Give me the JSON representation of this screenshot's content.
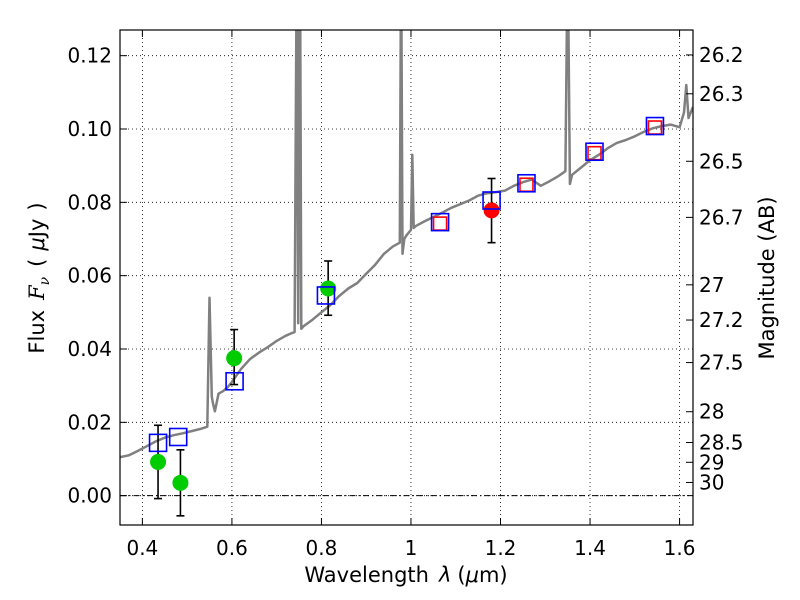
{
  "chart_data": {
    "type": "scatter",
    "xlabel_prefix": "Wavelength",
    "xlabel_symbol": "λ",
    "xlabel_unit_open": "(",
    "xlabel_unit_mu": "μ",
    "xlabel_unit_rest": "m)",
    "ylabel_prefix": "Flux",
    "ylabel_symbol_main": "F",
    "ylabel_symbol_sub": "ν",
    "ylabel_unit_open": "(",
    "ylabel_unit_mu": "μ",
    "ylabel_unit_rest": "Jy",
    "ylabel_unit_close": ")",
    "y2label": "Magnitude (AB)",
    "xlim": [
      0.35,
      1.63
    ],
    "ylim": [
      -0.008,
      0.127
    ],
    "grid": true,
    "xticks": [
      0.4,
      0.6,
      0.8,
      1.0,
      1.2,
      1.4,
      1.6
    ],
    "xtick_labels": [
      "0.4",
      "0.6",
      "0.8",
      "1",
      "1.2",
      "1.4",
      "1.6"
    ],
    "yticks": [
      0.0,
      0.02,
      0.04,
      0.06,
      0.08,
      0.1,
      0.12
    ],
    "ytick_labels": [
      "0.00",
      "0.02",
      "0.04",
      "0.06",
      "0.08",
      "0.10",
      "0.12"
    ],
    "mag_ticks": [
      {
        "label": "26.2",
        "flux": 0.1202
      },
      {
        "label": "26.3",
        "flux": 0.1096
      },
      {
        "label": "26.5",
        "flux": 0.0912
      },
      {
        "label": "26.7",
        "flux": 0.0759
      },
      {
        "label": "27",
        "flux": 0.0575
      },
      {
        "label": "27.2",
        "flux": 0.0479
      },
      {
        "label": "27.5",
        "flux": 0.0363
      },
      {
        "label": "28",
        "flux": 0.0229
      },
      {
        "label": "28.5",
        "flux": 0.0145
      },
      {
        "label": "29",
        "flux": 0.0091
      },
      {
        "label": "30",
        "flux": 0.0036
      }
    ],
    "series": [
      {
        "name": "model_spectrum",
        "kind": "line",
        "color": "#808080",
        "x": [
          0.35,
          0.37,
          0.39,
          0.41,
          0.43,
          0.45,
          0.47,
          0.49,
          0.51,
          0.53,
          0.545,
          0.55,
          0.555,
          0.558,
          0.562,
          0.57,
          0.58,
          0.59,
          0.6,
          0.62,
          0.64,
          0.66,
          0.68,
          0.7,
          0.72,
          0.735,
          0.74,
          0.745,
          0.748,
          0.752,
          0.755,
          0.76,
          0.78,
          0.8,
          0.82,
          0.84,
          0.86,
          0.88,
          0.9,
          0.92,
          0.94,
          0.96,
          0.975,
          0.978,
          0.981,
          0.985,
          0.99,
          1.0,
          1.003,
          1.006,
          1.01,
          1.03,
          1.05,
          1.07,
          1.09,
          1.11,
          1.13,
          1.15,
          1.17,
          1.19,
          1.21,
          1.23,
          1.25,
          1.27,
          1.29,
          1.31,
          1.33,
          1.345,
          1.35,
          1.355,
          1.36,
          1.38,
          1.4,
          1.42,
          1.44,
          1.46,
          1.48,
          1.5,
          1.52,
          1.54,
          1.56,
          1.58,
          1.6,
          1.61,
          1.615,
          1.62,
          1.63
        ],
        "y": [
          0.0105,
          0.011,
          0.0122,
          0.0135,
          0.0148,
          0.0158,
          0.0165,
          0.017,
          0.0176,
          0.0182,
          0.0188,
          0.054,
          0.027,
          0.025,
          0.023,
          0.0278,
          0.0285,
          0.0295,
          0.031,
          0.0345,
          0.0372,
          0.039,
          0.0405,
          0.0422,
          0.0436,
          0.0444,
          0.0446,
          0.15,
          0.047,
          0.15,
          0.0455,
          0.0462,
          0.048,
          0.05,
          0.052,
          0.0545,
          0.0565,
          0.058,
          0.0605,
          0.063,
          0.066,
          0.068,
          0.069,
          0.15,
          0.066,
          0.07,
          0.071,
          0.0725,
          0.093,
          0.073,
          0.0735,
          0.0748,
          0.076,
          0.0772,
          0.0785,
          0.0795,
          0.0805,
          0.0818,
          0.0825,
          0.0828,
          0.0832,
          0.0845,
          0.0855,
          0.0862,
          0.0845,
          0.0858,
          0.0872,
          0.0885,
          0.15,
          0.085,
          0.0875,
          0.0895,
          0.0915,
          0.093,
          0.0948,
          0.0962,
          0.097,
          0.098,
          0.0992,
          0.1002,
          0.1008,
          0.1012,
          0.1005,
          0.1045,
          0.112,
          0.103,
          0.106
        ]
      },
      {
        "name": "green_photometry",
        "kind": "errorbar_points",
        "marker": "circle",
        "color": "#00cc00",
        "points": [
          {
            "x": 0.435,
            "y": 0.0092,
            "ylo": -0.0008,
            "yhi": 0.0192
          },
          {
            "x": 0.485,
            "y": 0.0035,
            "ylo": -0.0055,
            "yhi": 0.0125
          },
          {
            "x": 0.605,
            "y": 0.0375,
            "ylo": 0.0303,
            "yhi": 0.0453
          },
          {
            "x": 0.815,
            "y": 0.0565,
            "ylo": 0.0492,
            "yhi": 0.064
          }
        ]
      },
      {
        "name": "red_photometry",
        "kind": "errorbar_points",
        "marker": "circle",
        "color": "#ff0000",
        "points": [
          {
            "x": 1.18,
            "y": 0.0778,
            "ylo": 0.069,
            "yhi": 0.0865
          }
        ]
      },
      {
        "name": "model_red_squares",
        "kind": "points",
        "marker": "square",
        "color": "#ff0000",
        "points": [
          {
            "x": 1.065,
            "y": 0.0742
          },
          {
            "x": 1.258,
            "y": 0.0848
          },
          {
            "x": 1.41,
            "y": 0.0934
          },
          {
            "x": 1.545,
            "y": 0.1004
          }
        ]
      },
      {
        "name": "model_blue_squares",
        "kind": "points",
        "marker": "square",
        "color": "#0000ff",
        "points": [
          {
            "x": 0.435,
            "y": 0.0144
          },
          {
            "x": 0.48,
            "y": 0.016
          },
          {
            "x": 0.606,
            "y": 0.0312
          },
          {
            "x": 0.81,
            "y": 0.0546
          },
          {
            "x": 1.065,
            "y": 0.0746
          },
          {
            "x": 1.18,
            "y": 0.0805
          },
          {
            "x": 1.258,
            "y": 0.0852
          },
          {
            "x": 1.41,
            "y": 0.0938
          },
          {
            "x": 1.545,
            "y": 0.1008
          }
        ]
      }
    ]
  }
}
